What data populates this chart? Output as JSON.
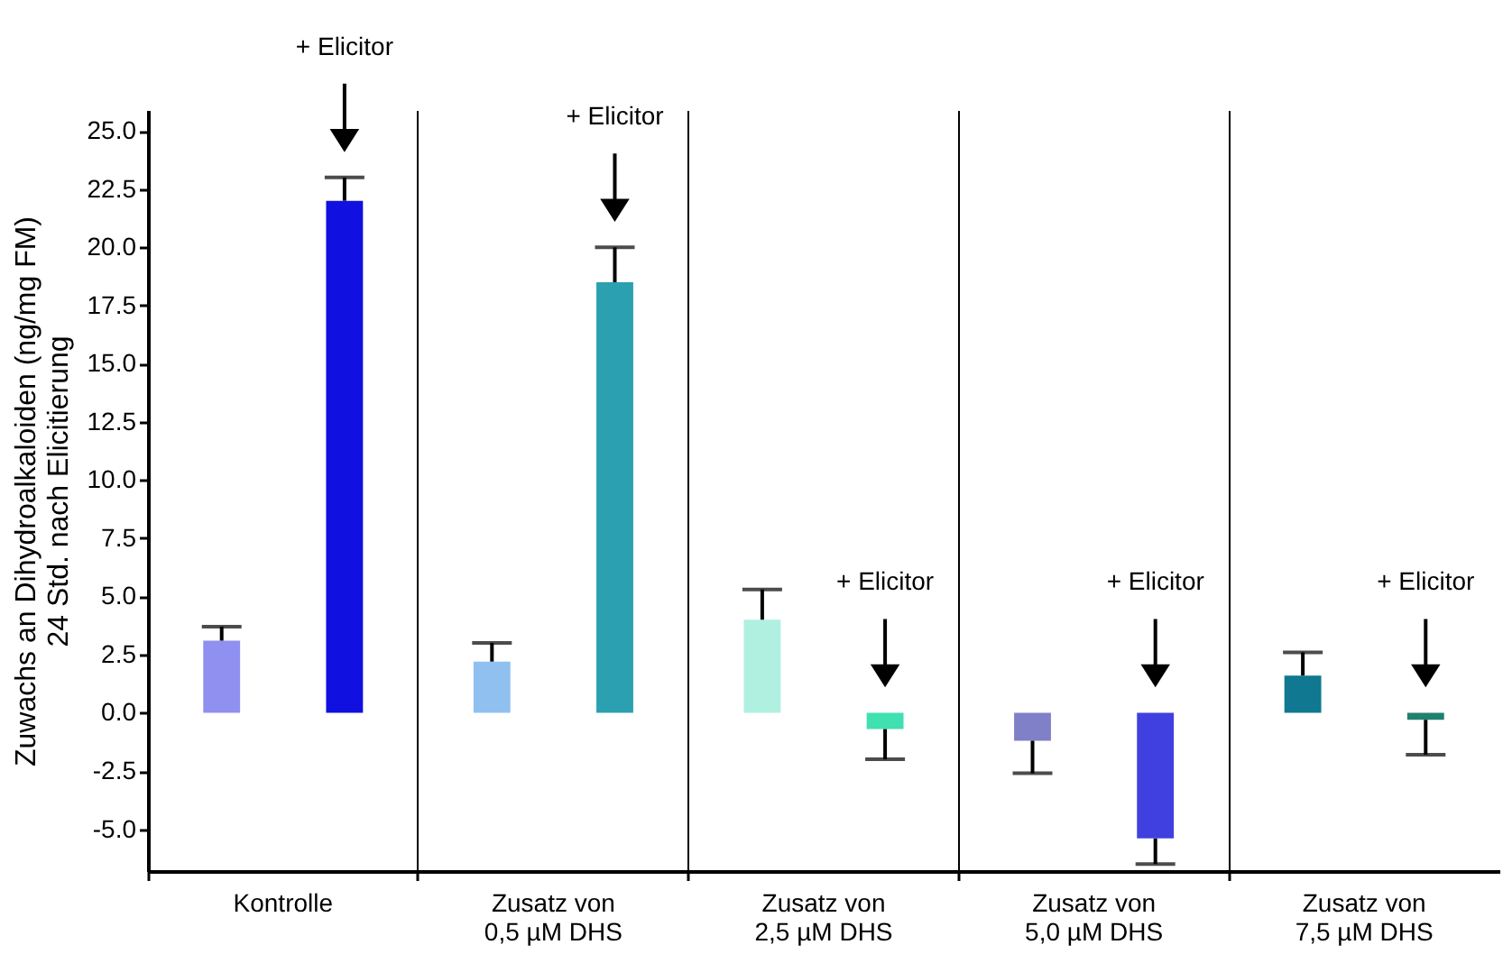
{
  "chart_data": {
    "type": "bar",
    "ylabel": "Zuwachs an Dihydroalkaloiden (ng/mg FM)\n24 Std. nach Elicitierung",
    "categories": [
      "Kontrolle",
      "Zusatz von\n0,5 µM DHS",
      "Zusatz von\n2,5 µM DHS",
      "Zusatz von\n5,0 µM DHS",
      "Zusatz von\n7,5 µM DHS"
    ],
    "series": [
      {
        "colors": [
          "#9090f0",
          "#90c0f0",
          "#b0f0e0",
          "#8080c8",
          "#107890"
        ],
        "values": [
          3.1,
          2.2,
          4.0,
          -1.2,
          1.6
        ],
        "errors": [
          [
            3.1,
            3.7
          ],
          [
            2.2,
            3.0
          ],
          [
            4.0,
            5.3
          ],
          [
            -2.6,
            -1.2
          ],
          [
            1.6,
            2.6
          ]
        ]
      },
      {
        "colors": [
          "#1010e0",
          "#2aa0b0",
          "#40e0b0",
          "#4040e0",
          "#208070"
        ],
        "values": [
          22.0,
          18.5,
          -0.7,
          -5.4,
          -0.3
        ],
        "errors": [
          [
            22.0,
            23.0
          ],
          [
            18.5,
            20.0
          ],
          [
            -2.0,
            -0.7
          ],
          [
            -6.5,
            -5.4
          ],
          [
            -1.8,
            -0.3
          ]
        ]
      }
    ],
    "annotations": [
      "+ Elicitor",
      "+ Elicitor",
      "+ Elicitor",
      "+ Elicitor",
      "+ Elicitor"
    ],
    "ylim": [
      -6.8,
      25.9
    ],
    "yticks": [
      {
        "value": -5,
        "label": "-5.0"
      },
      {
        "value": -2.5,
        "label": "-2.5"
      },
      {
        "value": 0,
        "label": "0.0"
      },
      {
        "value": 2.5,
        "label": "2.5"
      },
      {
        "value": 5,
        "label": "5.0"
      },
      {
        "value": 7.5,
        "label": "7.5"
      },
      {
        "value": 10,
        "label": "10.0"
      },
      {
        "value": 12.5,
        "label": "12.5"
      },
      {
        "value": 15,
        "label": "15.0"
      },
      {
        "value": 17.5,
        "label": "17.5"
      },
      {
        "value": 20,
        "label": "20.0"
      },
      {
        "value": 22.5,
        "label": "22.5"
      },
      {
        "value": 25,
        "label": "25.0"
      }
    ],
    "grid": "x"
  }
}
